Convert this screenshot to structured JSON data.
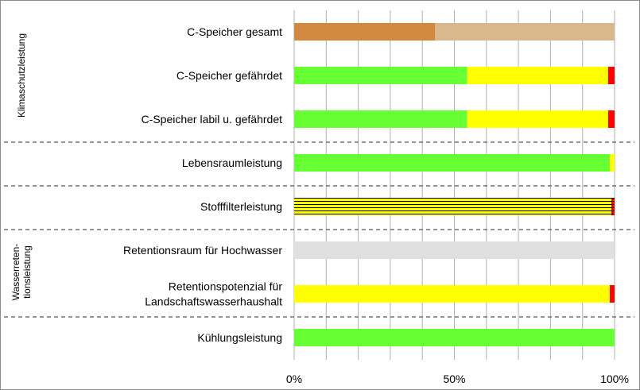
{
  "chart_data": {
    "type": "bar",
    "orientation": "horizontal",
    "stacked": true,
    "xlim": [
      0,
      100
    ],
    "x_ticks": [
      "0%",
      "50%",
      "100%"
    ],
    "grid": true,
    "categories": [
      {
        "label": [
          "C-Speicher gesamt"
        ],
        "segments": [
          {
            "value": 44,
            "color": "#d2883f"
          },
          {
            "value": 56,
            "color": "#d8b98e"
          }
        ]
      },
      {
        "label": [
          "C-Speicher gefährdet"
        ],
        "segments": [
          {
            "value": 54,
            "color": "#66ff33"
          },
          {
            "value": 44,
            "color": "#ffff00"
          },
          {
            "value": 2,
            "color": "#ff0000"
          }
        ]
      },
      {
        "label": [
          "C-Speicher labil u. gefährdet"
        ],
        "segments": [
          {
            "value": 54,
            "color": "#66ff33"
          },
          {
            "value": 44,
            "color": "#ffff00"
          },
          {
            "value": 2,
            "color": "#ff0000"
          }
        ]
      },
      {
        "label": [
          "Lebensraumleistung"
        ],
        "segments": [
          {
            "value": 98.5,
            "color": "#66ff33"
          },
          {
            "value": 1.5,
            "color": "#ffff00"
          }
        ]
      },
      {
        "label": [
          "Stofffilterleistung"
        ],
        "segments": [
          {
            "value": 99,
            "color": "#ffff00",
            "pattern": "stripes"
          },
          {
            "value": 1,
            "color": "#ff0000",
            "pattern": "stripes"
          }
        ]
      },
      {
        "label": [
          "Retentionsraum für Hochwasser"
        ],
        "segments": [
          {
            "value": 100,
            "color": "#e0e0e0"
          }
        ]
      },
      {
        "label": [
          "Retentionspotenzial für",
          "Landschaftswasserhaushalt"
        ],
        "segments": [
          {
            "value": 98.5,
            "color": "#ffff00"
          },
          {
            "value": 1.5,
            "color": "#ff0000"
          }
        ]
      },
      {
        "label": [
          "Kühlungsleistung"
        ],
        "segments": [
          {
            "value": 100,
            "color": "#66ff33"
          }
        ]
      }
    ],
    "groups": [
      {
        "label": [
          "Klimaschutzleistung"
        ],
        "from": 0,
        "to": 2
      },
      {
        "label": [
          "Wasserreten-",
          "tionsleistung"
        ],
        "from": 5,
        "to": 6
      }
    ]
  }
}
